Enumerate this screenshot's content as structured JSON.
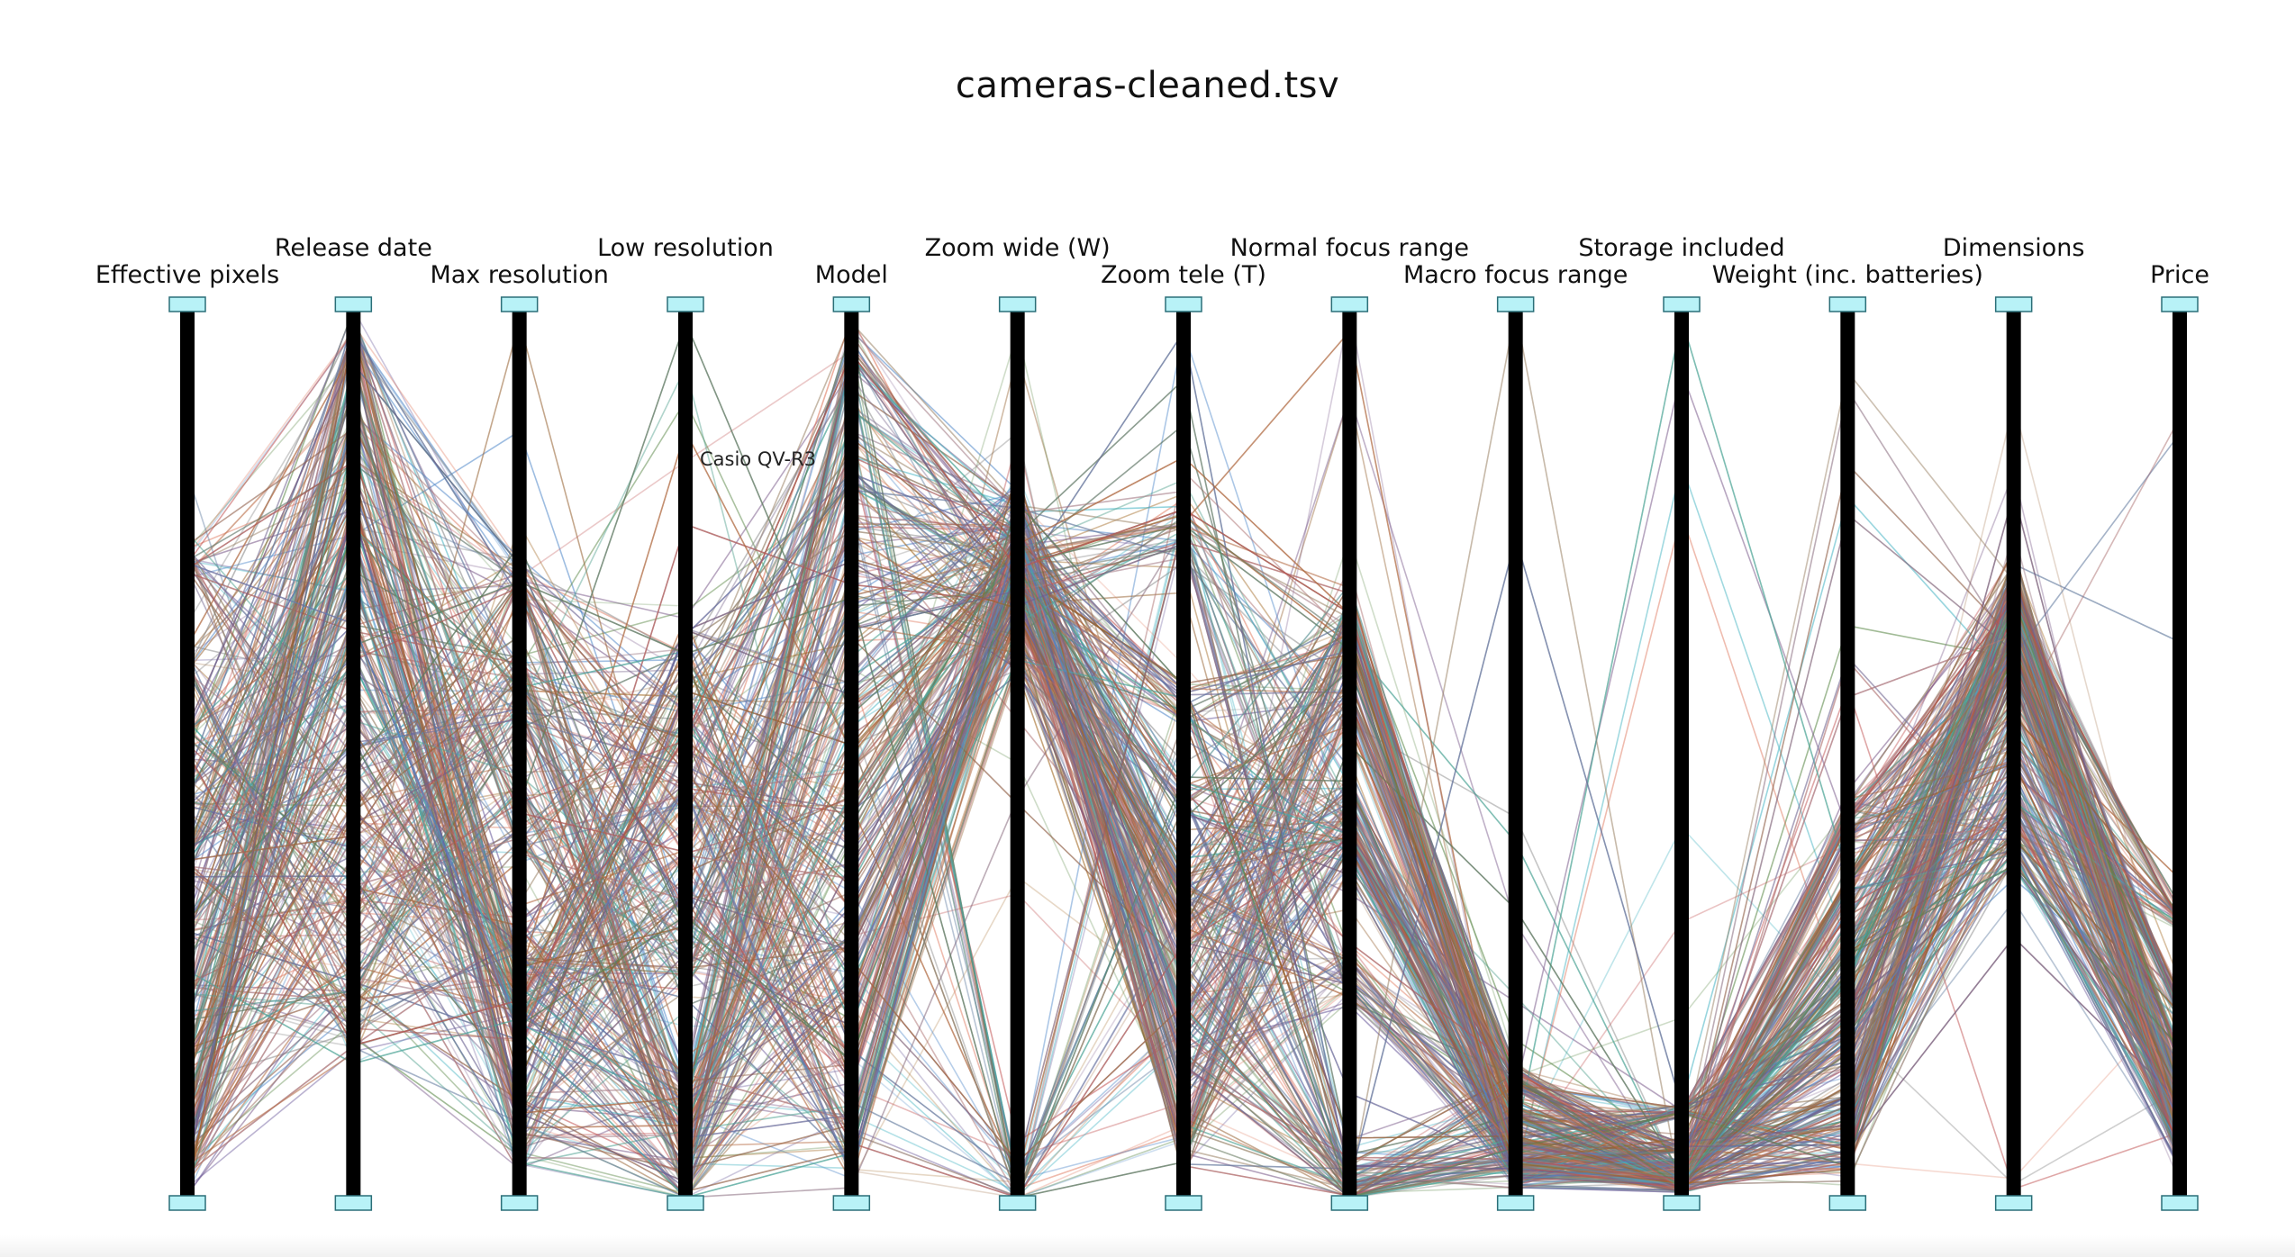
{
  "chart_data": {
    "type": "parallel-coordinates",
    "title": "cameras-cleaned.tsv",
    "axes": [
      "Effective pixels",
      "Release date",
      "Max resolution",
      "Low resolution",
      "Model",
      "Zoom wide (W)",
      "Zoom tele (T)",
      "Normal focus range",
      "Macro focus range",
      "Storage included",
      "Weight (inc. batteries)",
      "Dimensions",
      "Price"
    ],
    "annotations": [
      {
        "text": "Casio QV-R3",
        "axis": "Low resolution"
      }
    ],
    "axis_handle_color": "#b8f2f7",
    "axis_color": "#000000",
    "line_palette": [
      "#6a5a9a",
      "#4f87c9",
      "#a0651e",
      "#5d8a4a",
      "#e07a5f",
      "#8a8a8a",
      "#44b3c2",
      "#9b6a3c",
      "#c05050",
      "#7a5a8a"
    ],
    "grid": false,
    "legend": "none"
  }
}
